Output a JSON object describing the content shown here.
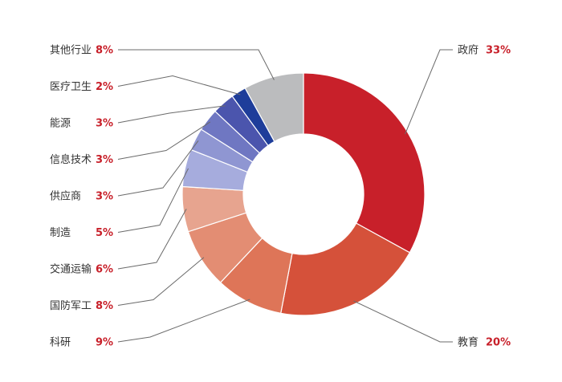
{
  "chart_data": {
    "type": "pie",
    "title": "",
    "donut": true,
    "legend": "none",
    "slices": [
      {
        "label": "政府",
        "value": 33,
        "display": "33%",
        "color": "#c8202a"
      },
      {
        "label": "教育",
        "value": 20,
        "display": "20%",
        "color": "#d5513a"
      },
      {
        "label": "科研",
        "value": 9,
        "display": "9%",
        "color": "#de7558"
      },
      {
        "label": "国防军工",
        "value": 8,
        "display": "8%",
        "color": "#e38d73"
      },
      {
        "label": "交通运输",
        "value": 6,
        "display": "6%",
        "color": "#e7a48f"
      },
      {
        "label": "制造",
        "value": 5,
        "display": "5%",
        "color": "#a6acdd"
      },
      {
        "label": "供应商",
        "value": 3,
        "display": "3%",
        "color": "#8f96d2"
      },
      {
        "label": "信息技术",
        "value": 3,
        "display": "3%",
        "color": "#6f77c2"
      },
      {
        "label": "能源",
        "value": 3,
        "display": "3%",
        "color": "#4b55ad"
      },
      {
        "label": "医疗卫生",
        "value": 2,
        "display": "2%",
        "color": "#1e3d9a"
      },
      {
        "label": "其他行业",
        "value": 8,
        "display": "8%",
        "color": "#bbbcbe"
      }
    ]
  }
}
